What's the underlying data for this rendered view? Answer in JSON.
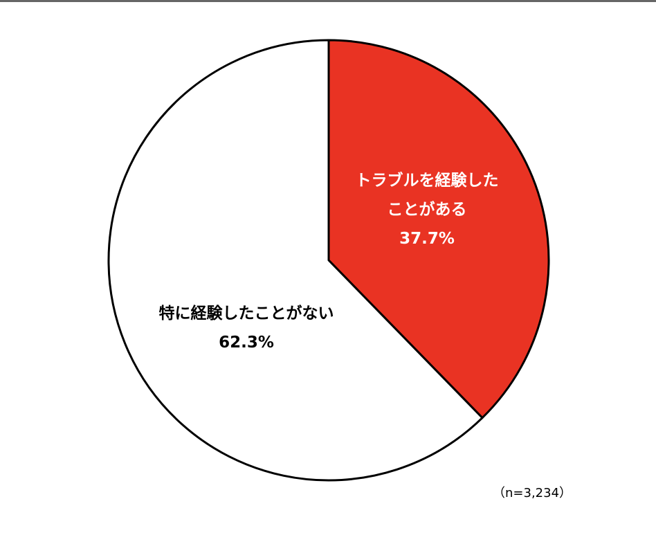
{
  "chart_data": {
    "type": "pie",
    "slices": [
      {
        "label_lines": [
          "トラブルを経験した",
          "ことがある"
        ],
        "value_label": "37.7%",
        "value": 37.7,
        "color": "#e93323",
        "text_color": "#ffffff"
      },
      {
        "label_lines": [
          "特に経験したことがない"
        ],
        "value_label": "62.3%",
        "value": 62.3,
        "color": "#ffffff",
        "text_color": "#000000"
      }
    ],
    "stroke_color": "#000000",
    "sample_size": "（n=3,234）"
  }
}
